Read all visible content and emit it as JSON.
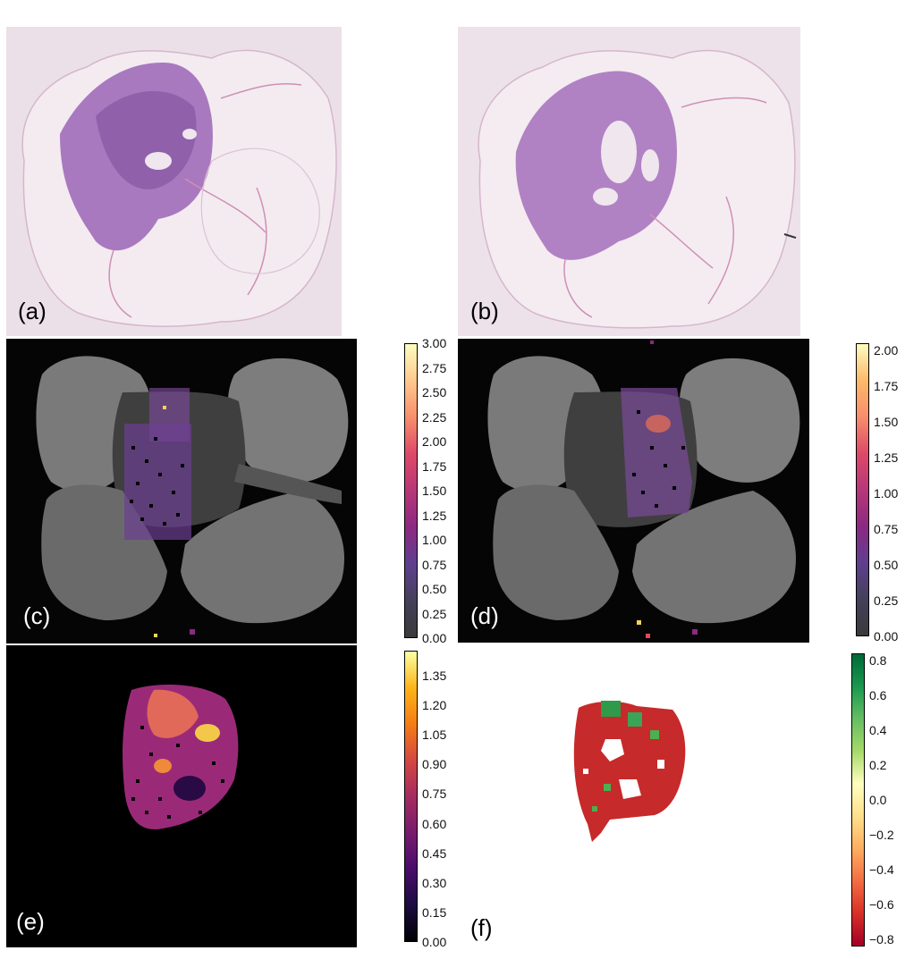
{
  "panels": [
    {
      "id": "a",
      "label": "(a)"
    },
    {
      "id": "b",
      "label": "(b)"
    },
    {
      "id": "c",
      "label": "(c)"
    },
    {
      "id": "d",
      "label": "(d)"
    },
    {
      "id": "e",
      "label": "(e)"
    },
    {
      "id": "f",
      "label": "(f)"
    }
  ],
  "colorbars": {
    "c": {
      "ticks": [
        "3.00",
        "2.75",
        "2.50",
        "2.25",
        "2.00",
        "1.75",
        "1.50",
        "1.25",
        "1.00",
        "0.75",
        "0.50",
        "0.25",
        "0.00"
      ],
      "colors": [
        "#fcfdbf",
        "#fec98d",
        "#f88e6c",
        "#de4968",
        "#b73779",
        "#8c2981",
        "#5f3f8f",
        "#44405a",
        "#3a3a3a"
      ]
    },
    "d": {
      "ticks": [
        "2.00",
        "1.75",
        "1.50",
        "1.25",
        "1.00",
        "0.75",
        "0.50",
        "0.25",
        "0.00"
      ],
      "colors": [
        "#fcfdbf",
        "#fdb96a",
        "#f88e6c",
        "#de4968",
        "#b73779",
        "#8c2981",
        "#5f3f8f",
        "#44405a",
        "#3a3a3a"
      ]
    },
    "e": {
      "ticks": [
        "1.35",
        "1.20",
        "1.05",
        "0.90",
        "0.75",
        "0.60",
        "0.45",
        "0.30",
        "0.15",
        "0.00"
      ],
      "colors": [
        "#fcffa4",
        "#fcb519",
        "#f57d15",
        "#d44842",
        "#a52c60",
        "#781c6d",
        "#4a0c6b",
        "#1b0c41",
        "#000004"
      ]
    },
    "f": {
      "ticks": [
        "0.8",
        "0.6",
        "0.4",
        "0.2",
        "0.0",
        "−0.2",
        "−0.4",
        "−0.6",
        "−0.8"
      ],
      "colors": [
        "#006837",
        "#1a9850",
        "#66bd63",
        "#a6d96a",
        "#ffffbf",
        "#fee08b",
        "#fdae61",
        "#f46d43",
        "#d73027",
        "#a50026"
      ]
    }
  }
}
